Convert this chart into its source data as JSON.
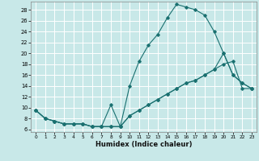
{
  "xlabel": "Humidex (Indice chaleur)",
  "x_ticks": [
    0,
    1,
    2,
    3,
    4,
    5,
    6,
    7,
    8,
    9,
    10,
    11,
    12,
    13,
    14,
    15,
    16,
    17,
    18,
    19,
    20,
    21,
    22,
    23
  ],
  "xlim": [
    -0.5,
    23.5
  ],
  "ylim": [
    5.5,
    29.5
  ],
  "y_ticks": [
    6,
    8,
    10,
    12,
    14,
    16,
    18,
    20,
    22,
    24,
    26,
    28
  ],
  "background_color": "#c8e8e8",
  "grid_color": "#ffffff",
  "line_color": "#1a7070",
  "line1_x": [
    0,
    1,
    2,
    3,
    4,
    5,
    6,
    7,
    8,
    9,
    10,
    11,
    12,
    13,
    14,
    15,
    16,
    17,
    18,
    19,
    20,
    21,
    22,
    23
  ],
  "line1_y": [
    9.5,
    8.0,
    7.5,
    7.0,
    7.0,
    7.0,
    6.5,
    6.5,
    10.5,
    6.5,
    14.0,
    18.5,
    21.5,
    23.5,
    26.5,
    29.0,
    28.5,
    28.0,
    27.0,
    24.0,
    20.0,
    16.0,
    14.5,
    13.5
  ],
  "line2_x": [
    0,
    1,
    2,
    3,
    4,
    5,
    6,
    7,
    8,
    9,
    10,
    11,
    12,
    13,
    14,
    15,
    16,
    17,
    18,
    19,
    20,
    21,
    22,
    23
  ],
  "line2_y": [
    9.5,
    8.0,
    7.5,
    7.0,
    7.0,
    7.0,
    6.5,
    6.5,
    6.5,
    6.5,
    8.5,
    9.5,
    10.5,
    11.5,
    12.5,
    13.5,
    14.5,
    15.0,
    16.0,
    17.0,
    18.0,
    18.5,
    13.5,
    13.5
  ],
  "line3_x": [
    0,
    1,
    2,
    3,
    4,
    5,
    6,
    7,
    8,
    9,
    10,
    11,
    12,
    13,
    14,
    15,
    16,
    17,
    18,
    19,
    20,
    21,
    22,
    23
  ],
  "line3_y": [
    9.5,
    8.0,
    7.5,
    7.0,
    7.0,
    7.0,
    6.5,
    6.5,
    6.5,
    6.5,
    8.5,
    9.5,
    10.5,
    11.5,
    12.5,
    13.5,
    14.5,
    15.0,
    16.0,
    17.0,
    20.0,
    16.0,
    14.5,
    13.5
  ],
  "xlabel_fontsize": 6,
  "tick_fontsize": 5,
  "lw": 0.8,
  "ms": 1.8
}
